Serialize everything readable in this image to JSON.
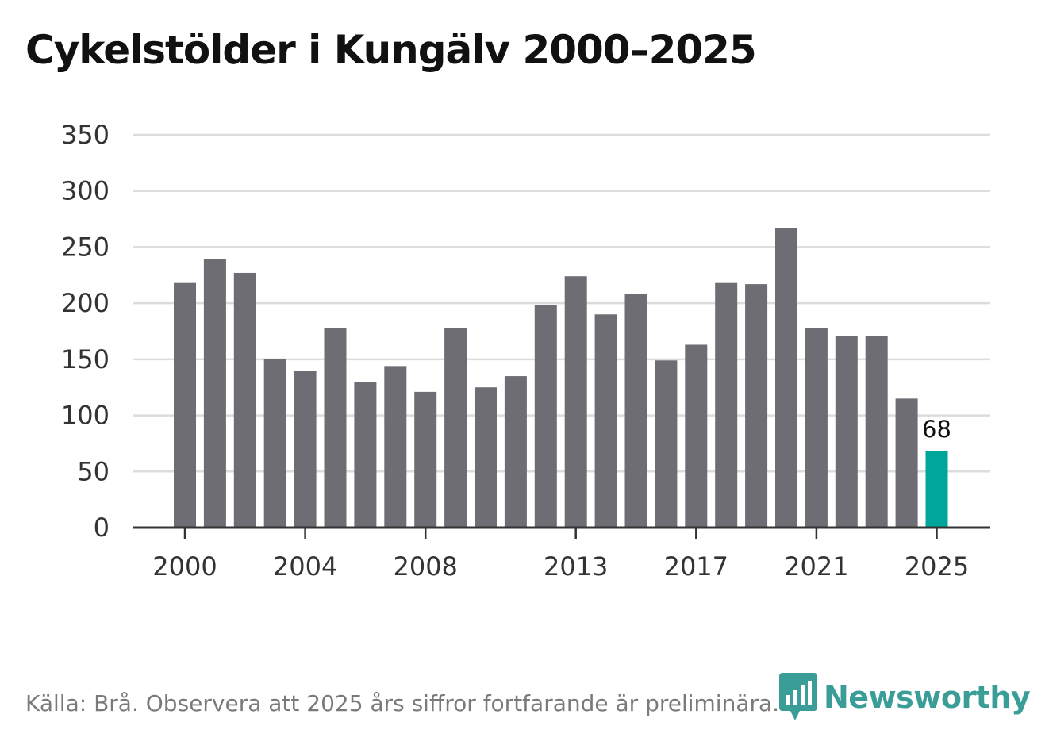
{
  "chart_data": {
    "type": "bar",
    "title": "Cykelstölder i Kungälv 2000–2025",
    "categories": [
      "2000",
      "2001",
      "2002",
      "2003",
      "2004",
      "2005",
      "2006",
      "2007",
      "2008",
      "2009",
      "2010",
      "2011",
      "2012",
      "2013",
      "2014",
      "2015",
      "2016",
      "2017",
      "2018",
      "2019",
      "2020",
      "2021",
      "2022",
      "2023",
      "2024",
      "2025"
    ],
    "values": [
      218,
      239,
      227,
      150,
      140,
      178,
      130,
      144,
      121,
      178,
      125,
      135,
      198,
      224,
      190,
      208,
      149,
      163,
      218,
      217,
      267,
      178,
      171,
      171,
      115,
      68
    ],
    "x_tick_labels": [
      "2000",
      "2004",
      "2008",
      "2013",
      "2017",
      "2021",
      "2025"
    ],
    "y_ticks": [
      0,
      50,
      100,
      150,
      200,
      250,
      300,
      350
    ],
    "ylim": [
      0,
      350
    ],
    "xlabel": "",
    "ylabel": "",
    "highlight": {
      "category": "2025",
      "label": "68"
    },
    "colors": {
      "bar": "#6e6d73",
      "highlight": "#00a699",
      "grid": "#dcdcdc",
      "axis": "#333333"
    },
    "source": "Källa: Brå. Observera att 2025 års siffror fortfarande är preliminära."
  },
  "logo": {
    "text": "Newsworthy",
    "icon": "newsworthy-logo-icon",
    "color": "#3a9d98"
  }
}
